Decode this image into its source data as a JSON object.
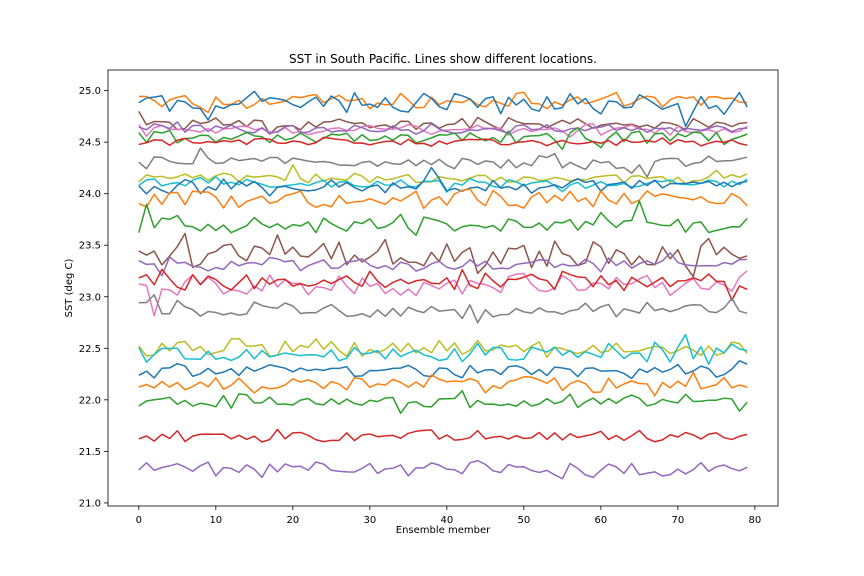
{
  "chart_data": {
    "type": "line",
    "title": "SST in South Pacific. Lines show different locations.",
    "xlabel": "Ensemble member",
    "ylabel": "SST (deg C)",
    "xlim": [
      -4,
      83
    ],
    "ylim": [
      20.97,
      25.2
    ],
    "x_ticks": [
      0,
      10,
      20,
      30,
      40,
      50,
      60,
      70,
      80
    ],
    "y_ticks": [
      21.0,
      21.5,
      22.0,
      22.5,
      23.0,
      23.5,
      24.0,
      24.5,
      25.0
    ],
    "x_tick_labels": [
      "0",
      "10",
      "20",
      "30",
      "40",
      "50",
      "60",
      "70",
      "80"
    ],
    "y_tick_labels": [
      "21.0",
      "21.5",
      "22.0",
      "22.5",
      "23.0",
      "23.5",
      "24.0",
      "24.5",
      "25.0"
    ],
    "grid": false,
    "legend": "none",
    "n_members": 80,
    "series": [
      {
        "color": "#ff7f0e",
        "base": 24.9,
        "amp": 0.06
      },
      {
        "color": "#1f77b4",
        "base": 24.87,
        "amp": 0.08
      },
      {
        "color": "#8c564b",
        "base": 24.68,
        "amp": 0.05
      },
      {
        "color": "#e377c2",
        "base": 24.62,
        "amp": 0.05
      },
      {
        "color": "#9467bd",
        "base": 24.63,
        "amp": 0.04
      },
      {
        "color": "#2ca02c",
        "base": 24.55,
        "amp": 0.05
      },
      {
        "color": "#d62728",
        "base": 24.5,
        "amp": 0.03
      },
      {
        "color": "#7f7f7f",
        "base": 24.3,
        "amp": 0.05
      },
      {
        "color": "#bcbd22",
        "base": 24.15,
        "amp": 0.04
      },
      {
        "color": "#17becf",
        "base": 24.1,
        "amp": 0.04
      },
      {
        "color": "#1f77b4",
        "base": 24.08,
        "amp": 0.07
      },
      {
        "color": "#ff7f0e",
        "base": 23.95,
        "amp": 0.07
      },
      {
        "color": "#2ca02c",
        "base": 23.7,
        "amp": 0.07
      },
      {
        "color": "#8c564b",
        "base": 23.42,
        "amp": 0.12
      },
      {
        "color": "#9467bd",
        "base": 23.32,
        "amp": 0.05
      },
      {
        "color": "#e377c2",
        "base": 23.12,
        "amp": 0.1
      },
      {
        "color": "#d62728",
        "base": 23.15,
        "amp": 0.07
      },
      {
        "color": "#7f7f7f",
        "base": 22.88,
        "amp": 0.07
      },
      {
        "color": "#bcbd22",
        "base": 22.5,
        "amp": 0.07
      },
      {
        "color": "#17becf",
        "base": 22.45,
        "amp": 0.08
      },
      {
        "color": "#1f77b4",
        "base": 22.28,
        "amp": 0.05
      },
      {
        "color": "#ff7f0e",
        "base": 22.15,
        "amp": 0.06
      },
      {
        "color": "#2ca02c",
        "base": 21.99,
        "amp": 0.05
      },
      {
        "color": "#d62728",
        "base": 21.65,
        "amp": 0.05
      },
      {
        "color": "#9467bd",
        "base": 21.33,
        "amp": 0.06
      }
    ]
  }
}
